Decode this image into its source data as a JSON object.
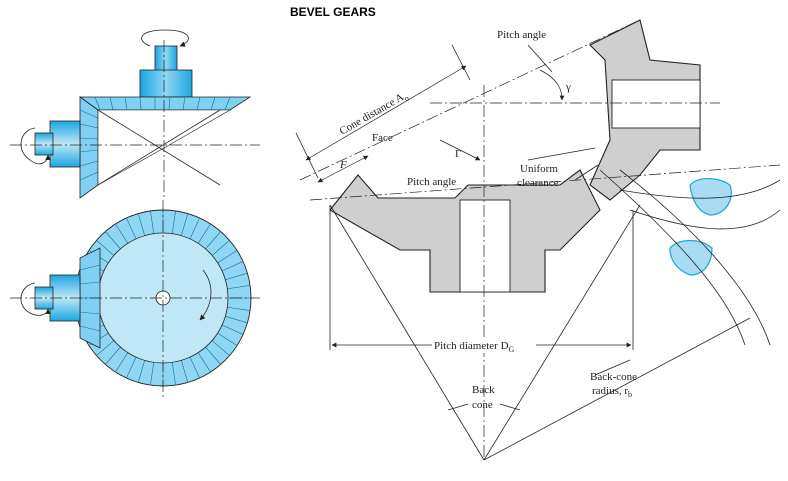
{
  "title": "BEVEL GEARS",
  "labels": {
    "pitch_angle_top": "Pitch angle",
    "gamma": "γ",
    "cone_distance": "Cone distance A",
    "cone_distance_sub": "o",
    "face": "Face",
    "F": "F",
    "Gamma": "Γ",
    "pitch_angle_mid": "Pitch angle",
    "uniform": "Uniform",
    "clearance": "clearance",
    "pitch_diameter": "Pitch diameter D",
    "pitch_diameter_sub": "G",
    "back": "Back",
    "cone": "cone",
    "back_cone": "Back-cone",
    "radius": "radius, r",
    "radius_sub": "b"
  },
  "colors": {
    "gear_blue_light": "#b9e4f7",
    "gear_blue_mid": "#7fd0f2",
    "gear_blue_dark": "#1aa6e0",
    "section_gray": "#cfcfcf",
    "tooth_blue": "#a9dcf3"
  },
  "icons": [
    "rotation-arrow-icon",
    "rotation-arrow-icon",
    "rotation-arrow-icon",
    "rotation-arrow-icon"
  ]
}
